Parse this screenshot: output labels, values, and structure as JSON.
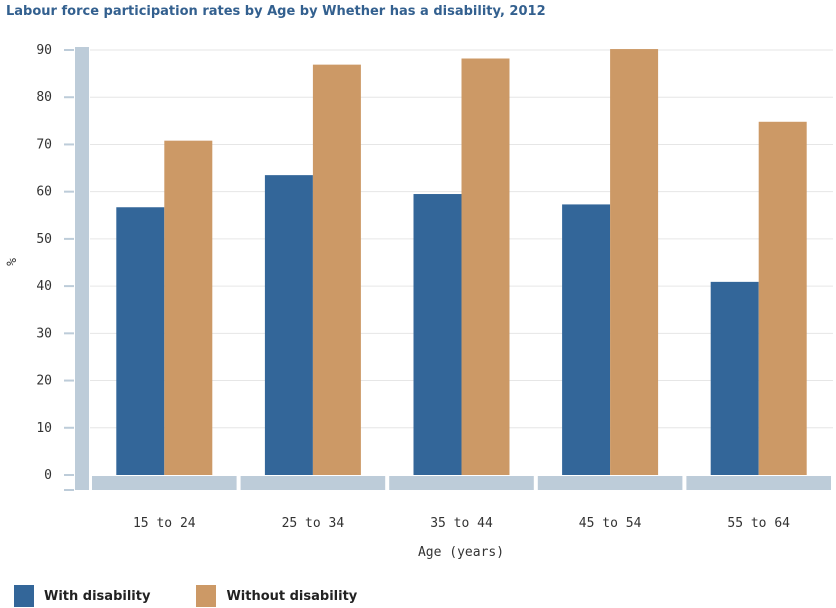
{
  "chart_data": {
    "type": "bar",
    "title": "Labour force participation rates by Age by Whether has a disability, 2012",
    "xlabel": "Age (years)",
    "ylabel": "%",
    "ylim": [
      0,
      90
    ],
    "yticks": [
      0,
      10,
      20,
      30,
      40,
      50,
      60,
      70,
      80,
      90
    ],
    "categories": [
      "15 to 24",
      "25 to 34",
      "35 to 44",
      "45 to 54",
      "55 to 64"
    ],
    "series": [
      {
        "name": "With disability",
        "color": "#336699",
        "values": [
          56.7,
          63.5,
          59.5,
          57.3,
          40.9
        ]
      },
      {
        "name": "Without disability",
        "color": "#cc9966",
        "values": [
          70.8,
          86.9,
          88.2,
          90.2,
          74.8
        ]
      }
    ],
    "grid": true,
    "legend_position": "bottom-left"
  }
}
